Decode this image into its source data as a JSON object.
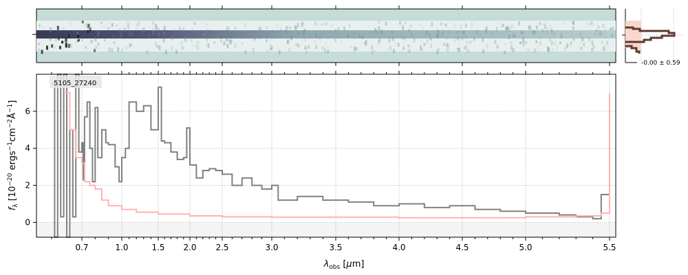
{
  "chart_data": {
    "type": "line",
    "object_label": "5105_27240",
    "xlabel": "λ_obs [μm]",
    "ylabel": "f_λ [10^-20 ergs^-1 cm^-2 Å^-1]",
    "xticks": [
      0.7,
      1.0,
      1.5,
      2.0,
      2.5,
      3.0,
      3.5,
      4.0,
      4.5,
      5.0,
      5.5
    ],
    "xtick_labels": [
      "0.7",
      "1.0",
      "1.5",
      "2.0",
      "2.5",
      "3.0",
      "3.5",
      "4.0",
      "4.5",
      "5.0",
      "5.5"
    ],
    "yticks": [
      0,
      2,
      4,
      6
    ],
    "ytick_labels": [
      "0",
      "2",
      "4",
      "6"
    ],
    "xlim": [
      0.6,
      5.52
    ],
    "ylim": [
      -0.8,
      8.0
    ],
    "grid": true,
    "series": [
      {
        "name": "flux",
        "color": "#808080",
        "x": [
          0.6,
          0.61,
          0.62,
          0.63,
          0.64,
          0.65,
          0.66,
          0.67,
          0.68,
          0.69,
          0.7,
          0.71,
          0.72,
          0.74,
          0.76,
          0.78,
          0.8,
          0.82,
          0.85,
          0.88,
          0.9,
          0.95,
          0.98,
          1.0,
          1.05,
          1.1,
          1.2,
          1.3,
          1.4,
          1.5,
          1.55,
          1.6,
          1.7,
          1.8,
          1.9,
          1.95,
          2.0,
          2.1,
          2.2,
          2.3,
          2.4,
          2.5,
          2.6,
          2.7,
          2.8,
          2.9,
          3.0,
          3.05,
          3.2,
          3.4,
          3.6,
          3.8,
          4.0,
          4.2,
          4.4,
          4.6,
          4.8,
          5.0,
          5.2,
          5.3,
          5.4,
          5.45,
          5.5
        ],
        "y": [
          7.5,
          -0.8,
          8,
          0.3,
          8,
          -0.8,
          5,
          0.3,
          8,
          3.8,
          4.3,
          2.3,
          5.7,
          6.5,
          4,
          2.2,
          6.2,
          3.5,
          5,
          4.3,
          4.2,
          3,
          2.2,
          3.5,
          4,
          6.5,
          6,
          6.3,
          5,
          7.3,
          4.4,
          4.3,
          3.8,
          3.4,
          3.5,
          5.1,
          3.1,
          2.4,
          2.8,
          2.9,
          2.8,
          2.6,
          2.0,
          2.4,
          2.0,
          1.8,
          2.0,
          1.2,
          1.4,
          1.2,
          1.1,
          0.9,
          1.0,
          0.8,
          0.9,
          0.7,
          0.6,
          0.5,
          0.4,
          0.3,
          0.2,
          1.5,
          4.8
        ]
      },
      {
        "name": "error",
        "color": "#ffb3b3",
        "x": [
          0.64,
          0.66,
          0.68,
          0.7,
          0.72,
          0.76,
          0.8,
          0.85,
          0.9,
          1.0,
          1.2,
          1.5,
          2.0,
          2.5,
          3.0,
          4.0,
          5.0,
          5.3,
          5.45,
          5.5
        ],
        "y": [
          7,
          5,
          3.5,
          3.2,
          2.2,
          2.0,
          1.8,
          1.2,
          0.9,
          0.7,
          0.55,
          0.45,
          0.35,
          0.3,
          0.28,
          0.25,
          0.3,
          0.35,
          0.5,
          7
        ]
      }
    ],
    "inset": {
      "label": "-0.00 ± 0.59"
    }
  }
}
